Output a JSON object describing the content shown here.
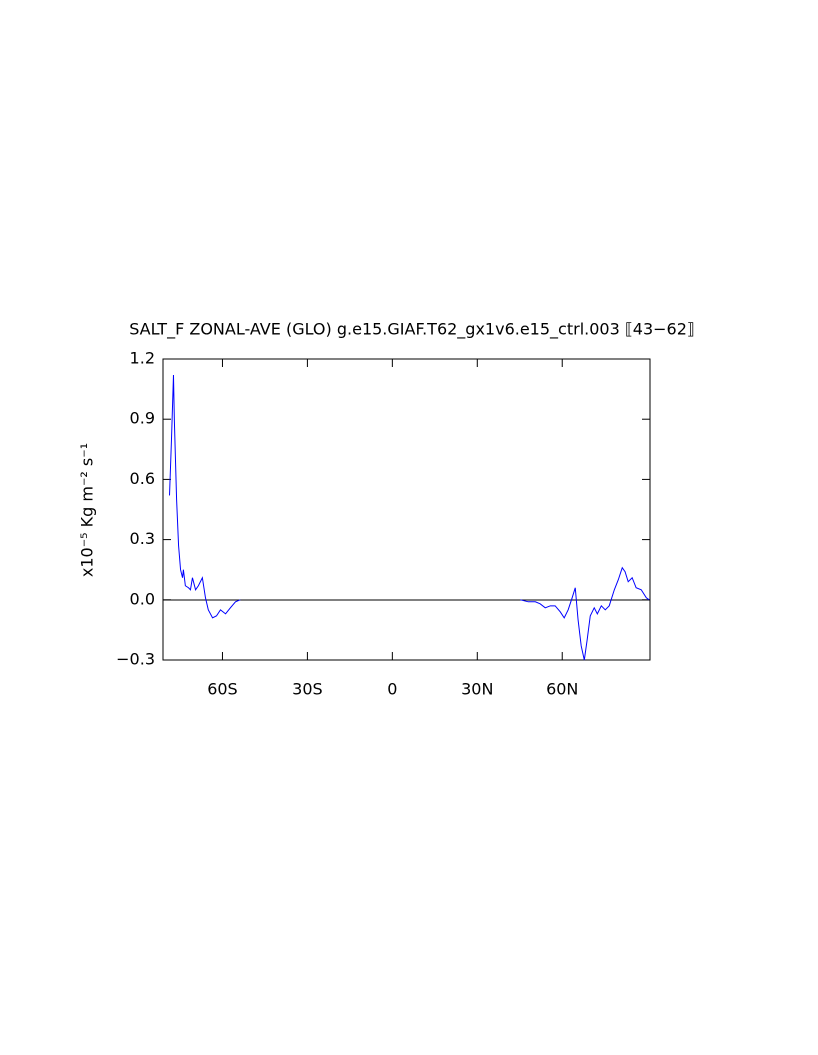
{
  "chart_data": {
    "type": "line",
    "title": "SALT_F ZONAL-AVE (GLO) g.e15.GIAF.T62_gx1v6.e15_ctrl.003 ⟦43−62⟧",
    "y_label": "x10⁻⁵ Kg m⁻² s⁻¹",
    "color": "#0000ff",
    "x": [
      -78.7,
      -78.0,
      -77.3,
      -77.0,
      -76.2,
      -75.5,
      -74.8,
      -74.1,
      -73.8,
      -73.1,
      -72.0,
      -71.3,
      -70.6,
      -69.5,
      -68.5,
      -67.1,
      -66.0,
      -65.0,
      -63.5,
      -62.1,
      -60.7,
      -58.9,
      -57.2,
      -55.4,
      -53.7,
      0,
      45.2,
      48.0,
      50.5,
      52.2,
      54.0,
      55.8,
      57.5,
      59.3,
      60.7,
      62.1,
      63.5,
      64.6,
      65.6,
      66.7,
      67.8,
      68.8,
      69.9,
      71.3,
      72.4,
      73.8,
      75.2,
      76.6,
      78.4,
      79.8,
      81.2,
      82.2,
      83.3,
      84.7,
      86.1,
      87.9,
      89.7,
      90.7
    ],
    "values": [
      0.52,
      0.8,
      1.12,
      0.9,
      0.5,
      0.27,
      0.15,
      0.11,
      0.15,
      0.07,
      0.06,
      0.05,
      0.11,
      0.05,
      0.07,
      0.11,
      0.01,
      -0.05,
      -0.09,
      -0.08,
      -0.05,
      -0.07,
      -0.04,
      -0.01,
      0.0,
      null,
      0.0,
      -0.01,
      -0.01,
      -0.02,
      -0.04,
      -0.03,
      -0.03,
      -0.06,
      -0.09,
      -0.05,
      0.01,
      0.06,
      -0.1,
      -0.23,
      -0.3,
      -0.2,
      -0.08,
      -0.04,
      -0.07,
      -0.03,
      -0.05,
      -0.03,
      0.05,
      0.1,
      0.16,
      0.14,
      0.09,
      0.11,
      0.06,
      0.05,
      0.01,
      0.0
    ],
    "xlim": [
      -81,
      91
    ],
    "xticks": [
      {
        "value": -60,
        "label": "60S"
      },
      {
        "value": -30,
        "label": "30S"
      },
      0,
      {
        "value": 30,
        "label": "30N"
      },
      {
        "value": 60,
        "label": "60N"
      }
    ],
    "ylim": [
      -0.3,
      1.2
    ],
    "yticks": [
      {
        "value": -0.3,
        "label": "−0.3"
      },
      {
        "value": 0,
        "label": "0.0"
      },
      0.3,
      0.6,
      0.9,
      1.2
    ]
  }
}
